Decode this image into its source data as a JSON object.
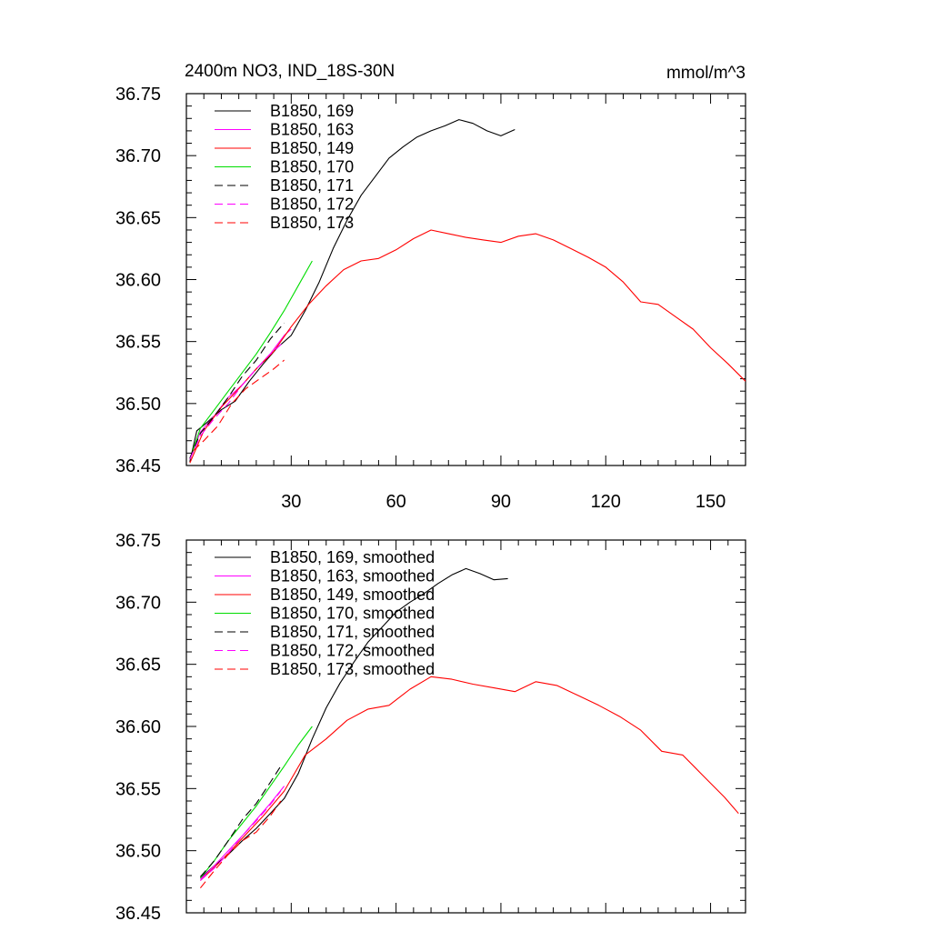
{
  "header": {
    "title": "2400m NO3, IND_18S-30N",
    "units": "mmol/m^3"
  },
  "chart_data": [
    {
      "type": "line",
      "panel": "raw",
      "xlim": [
        0,
        160
      ],
      "ylim": [
        36.45,
        36.75
      ],
      "xticks": [
        30,
        60,
        90,
        120,
        150
      ],
      "yticks": [
        36.45,
        36.5,
        36.55,
        36.6,
        36.65,
        36.7,
        36.75
      ],
      "ytick_labels": [
        "36.45",
        "36.50",
        "36.55",
        "36.60",
        "36.65",
        "36.70",
        "36.75"
      ],
      "xtick_labels": [
        "30",
        "60",
        "90",
        "120",
        "150"
      ],
      "legend_position": "top-left",
      "series": [
        {
          "name": "B1850, 169",
          "color": "#000000",
          "dash": "solid",
          "x": [
            1,
            3,
            6,
            10,
            14,
            18,
            22,
            26,
            30,
            34,
            38,
            42,
            46,
            50,
            54,
            58,
            62,
            66,
            70,
            74,
            78,
            82,
            86,
            90,
            94
          ],
          "y": [
            36.453,
            36.478,
            36.485,
            36.495,
            36.502,
            36.518,
            36.532,
            36.545,
            36.555,
            36.575,
            36.598,
            36.625,
            36.648,
            36.668,
            36.683,
            36.698,
            36.707,
            36.715,
            36.72,
            36.724,
            36.729,
            36.726,
            36.72,
            36.716,
            36.721
          ]
        },
        {
          "name": "B1850, 163",
          "color": "#ff00ff",
          "dash": "solid",
          "x": [
            1,
            4,
            8,
            12,
            16,
            20,
            24,
            28,
            30
          ],
          "y": [
            36.455,
            36.477,
            36.49,
            36.505,
            36.515,
            36.528,
            36.54,
            36.555,
            36.56
          ]
        },
        {
          "name": "B1850, 149",
          "color": "#ff0000",
          "dash": "solid",
          "x": [
            1,
            5,
            10,
            15,
            20,
            25,
            30,
            35,
            40,
            45,
            50,
            55,
            60,
            65,
            70,
            75,
            80,
            85,
            90,
            95,
            100,
            105,
            110,
            115,
            120,
            125,
            130,
            135,
            140,
            145,
            150,
            155,
            160
          ],
          "y": [
            36.452,
            36.478,
            36.497,
            36.512,
            36.528,
            36.542,
            36.562,
            36.58,
            36.595,
            36.608,
            36.615,
            36.617,
            36.624,
            36.633,
            36.64,
            36.637,
            36.634,
            36.632,
            36.63,
            36.635,
            36.637,
            36.632,
            36.625,
            36.618,
            36.61,
            36.598,
            36.582,
            36.58,
            36.57,
            36.56,
            36.545,
            36.532,
            36.518
          ]
        },
        {
          "name": "B1850, 170",
          "color": "#00dd00",
          "dash": "solid",
          "x": [
            1,
            4,
            8,
            12,
            16,
            20,
            24,
            28,
            32,
            36
          ],
          "y": [
            36.455,
            36.48,
            36.495,
            36.51,
            36.525,
            36.54,
            36.557,
            36.575,
            36.595,
            36.615
          ]
        },
        {
          "name": "B1850, 171",
          "color": "#000000",
          "dash": "dashed",
          "x": [
            1,
            4,
            8,
            12,
            16,
            20,
            24,
            28
          ],
          "y": [
            36.456,
            36.476,
            36.49,
            36.505,
            36.522,
            36.535,
            36.552,
            36.565
          ]
        },
        {
          "name": "B1850, 172",
          "color": "#ff00ff",
          "dash": "dashed",
          "x": [
            1,
            4,
            8,
            12,
            16,
            20,
            24,
            28
          ],
          "y": [
            36.455,
            36.474,
            36.488,
            36.5,
            36.515,
            36.528,
            36.54,
            36.55
          ]
        },
        {
          "name": "B1850, 173",
          "color": "#ff0000",
          "dash": "dashed",
          "x": [
            2,
            5,
            9,
            13,
            17,
            21,
            25,
            28
          ],
          "y": [
            36.462,
            36.47,
            36.482,
            36.5,
            36.512,
            36.52,
            36.528,
            36.535
          ]
        }
      ]
    },
    {
      "type": "line",
      "panel": "smoothed",
      "xlim": [
        0,
        160
      ],
      "ylim": [
        36.45,
        36.75
      ],
      "yticks": [
        36.45,
        36.5,
        36.55,
        36.6,
        36.65,
        36.7,
        36.75
      ],
      "ytick_labels": [
        "36.45",
        "36.50",
        "36.55",
        "36.60",
        "36.65",
        "36.70",
        "36.75"
      ],
      "legend_position": "top-left",
      "series": [
        {
          "name": "B1850, 169, smoothed",
          "color": "#000000",
          "dash": "solid",
          "x": [
            4,
            8,
            12,
            16,
            20,
            24,
            28,
            32,
            36,
            40,
            44,
            48,
            52,
            56,
            60,
            64,
            68,
            72,
            76,
            80,
            84,
            88,
            92
          ],
          "y": [
            36.478,
            36.488,
            36.497,
            36.508,
            36.518,
            36.53,
            36.542,
            36.562,
            36.59,
            36.615,
            36.635,
            36.652,
            36.668,
            36.68,
            36.692,
            36.7,
            36.707,
            36.715,
            36.722,
            36.727,
            36.723,
            36.718,
            36.719
          ]
        },
        {
          "name": "B1850, 163, smoothed",
          "color": "#ff00ff",
          "dash": "solid",
          "x": [
            4,
            8,
            12,
            16,
            20,
            24,
            28
          ],
          "y": [
            36.477,
            36.488,
            36.5,
            36.512,
            36.525,
            36.538,
            36.552
          ]
        },
        {
          "name": "B1850, 149, smoothed",
          "color": "#ff0000",
          "dash": "solid",
          "x": [
            4,
            10,
            16,
            22,
            28,
            34,
            40,
            46,
            52,
            58,
            64,
            70,
            76,
            82,
            88,
            94,
            100,
            106,
            112,
            118,
            124,
            130,
            136,
            142,
            148,
            154,
            158
          ],
          "y": [
            36.476,
            36.492,
            36.51,
            36.528,
            36.548,
            36.577,
            36.59,
            36.605,
            36.614,
            36.617,
            36.63,
            36.64,
            36.638,
            36.634,
            36.631,
            36.628,
            36.636,
            36.633,
            36.625,
            36.617,
            36.608,
            36.597,
            36.58,
            36.577,
            36.56,
            36.543,
            36.53
          ]
        },
        {
          "name": "B1850, 170, smoothed",
          "color": "#00dd00",
          "dash": "solid",
          "x": [
            4,
            8,
            12,
            16,
            20,
            24,
            28,
            32,
            36
          ],
          "y": [
            36.478,
            36.492,
            36.508,
            36.522,
            36.536,
            36.552,
            36.568,
            36.585,
            36.6
          ]
        },
        {
          "name": "B1850, 171, smoothed",
          "color": "#000000",
          "dash": "dashed",
          "x": [
            4,
            8,
            12,
            16,
            20,
            24,
            27
          ],
          "y": [
            36.479,
            36.492,
            36.508,
            36.525,
            36.538,
            36.555,
            36.568
          ]
        },
        {
          "name": "B1850, 172, smoothed",
          "color": "#ff00ff",
          "dash": "dashed",
          "x": [
            4,
            8,
            12,
            16,
            20,
            24,
            27
          ],
          "y": [
            36.476,
            36.486,
            36.498,
            36.512,
            36.524,
            36.537,
            36.548
          ]
        },
        {
          "name": "B1850, 173, smoothed",
          "color": "#ff0000",
          "dash": "dashed",
          "x": [
            4,
            8,
            12,
            16,
            20,
            24,
            27
          ],
          "y": [
            36.47,
            36.484,
            36.497,
            36.508,
            36.515,
            36.528,
            36.54
          ]
        }
      ]
    }
  ]
}
